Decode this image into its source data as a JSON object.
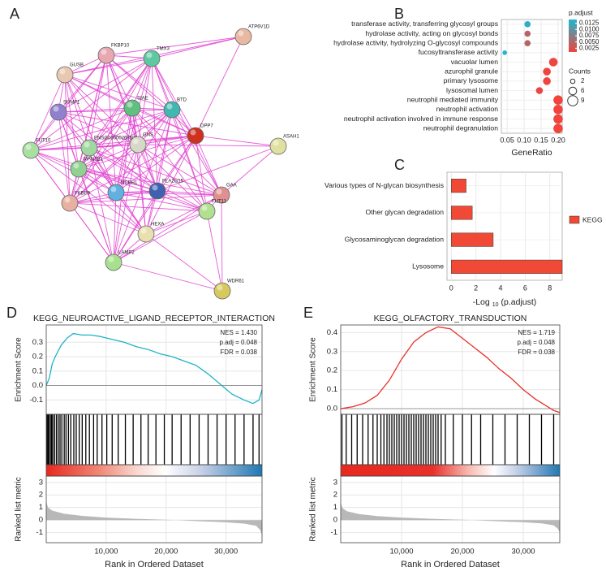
{
  "network": {
    "panel": "A",
    "nodes": [
      {
        "label": "ATP6V1D"
      },
      {
        "label": "FKBP10"
      },
      {
        "label": "TMX3"
      },
      {
        "label": "GUSB"
      },
      {
        "label": "SUMF1"
      },
      {
        "label": "SIAE"
      },
      {
        "label": "BTD"
      },
      {
        "label": "DPP7"
      },
      {
        "label": "ASAH1"
      },
      {
        "label": "FUT10"
      },
      {
        "label": "ENSG00000268590"
      },
      {
        "label": "GNS"
      },
      {
        "label": "MAN2B1"
      },
      {
        "label": "NCEH1"
      },
      {
        "label": "PLA2G15"
      },
      {
        "label": "GAA"
      },
      {
        "label": "FUT11"
      },
      {
        "label": "FKBP9"
      },
      {
        "label": "HEXA"
      },
      {
        "label": "LAMP2"
      },
      {
        "label": "WDR61"
      }
    ]
  },
  "chart_data": [
    {
      "type": "scatter",
      "panel": "B",
      "categories": [
        "transferase activity, transferring glycosyl groups",
        "hydrolase activity, acting on glycosyl bonds",
        "hydrolase activity, hydrolyzing O-glycosyl compounds",
        "fucosyltransferase activity",
        "vacuolar lumen",
        "azurophil granule",
        "primary lysosome",
        "lysosomal lumen",
        "neutrophil mediated immunity",
        "neutrophil activation",
        "neutrophil activation involved in immune response",
        "neutrophil degranulation"
      ],
      "values": [
        0.11,
        0.11,
        0.11,
        0.043,
        0.186,
        0.167,
        0.167,
        0.145,
        0.2,
        0.2,
        0.2,
        0.2
      ],
      "p_adjust": [
        0.013,
        0.0045,
        0.0045,
        0.014,
        0.0012,
        0.001,
        0.001,
        0.0015,
        0.001,
        0.001,
        0.001,
        0.001
      ],
      "counts": [
        4,
        4,
        4,
        2,
        7,
        6,
        6,
        5,
        8,
        8,
        8,
        8
      ],
      "xlim": [
        0.033,
        0.212
      ],
      "xticks": [
        0.05,
        {
          "value": 0.1,
          "label": "0.10"
        },
        0.15,
        {
          "value": 0.2,
          "label": "0.20"
        }
      ],
      "xlabel": "GeneRatio",
      "color_title": "p.adjust",
      "clim": [
        0.001,
        0.014
      ],
      "colors": [
        "#f0443c",
        "#1db7ce"
      ],
      "colorbar_ticks": [
        0.0125,
        {
          "value": 0.01,
          "label": "0.0100"
        },
        0.0075,
        {
          "value": 0.005,
          "label": "0.0050"
        },
        0.0025
      ],
      "size_title": "Counts",
      "size_legend": [
        2,
        6,
        9
      ]
    },
    {
      "type": "bar",
      "panel": "C",
      "orientation": "horizontal",
      "categories": [
        "Various types of N-glycan biosynthesis",
        "Other glycan degradation",
        "Glycosaminoglycan degradation",
        "Lysosome"
      ],
      "series": [
        {
          "name": "KEGG",
          "color": "#f04a36",
          "values": [
            1.2,
            1.7,
            3.4,
            9
          ]
        }
      ],
      "xlim": [
        -0.35,
        9
      ],
      "xticks": [
        0,
        2,
        4,
        6,
        8
      ],
      "xlabel_parts": [
        "-Log",
        "10",
        "(p.adjust)"
      ]
    },
    {
      "type": "gsea",
      "panel": "D",
      "title": "KEGG_NEUROACTIVE_LIGAND_RECEPTOR_INTERACTION",
      "color": "#1eb3c9",
      "x": [
        0,
        500,
        1000,
        1500,
        2500,
        3500,
        4500,
        6000,
        7500,
        9000,
        11000,
        13000,
        15000,
        17000,
        19000,
        21000,
        23000,
        25000,
        27000,
        29000,
        31000,
        33000,
        34500,
        35500,
        36000
      ],
      "values": [
        0,
        0.05,
        0.15,
        0.2,
        0.28,
        0.33,
        0.36,
        0.35,
        0.35,
        0.34,
        0.32,
        0.3,
        0.27,
        0.25,
        0.22,
        0.2,
        0.17,
        0.14,
        0.08,
        0.01,
        -0.06,
        -0.1,
        -0.125,
        -0.1,
        -0.03
      ],
      "hits": [
        120,
        300,
        450,
        700,
        900,
        1100,
        1400,
        1700,
        2000,
        2300,
        2600,
        3000,
        3300,
        3700,
        4100,
        4600,
        5000,
        5500,
        6000,
        6600,
        7200,
        7900,
        8500,
        9300,
        10100,
        11000,
        12000,
        13200,
        14500,
        15800,
        17000,
        18300,
        19700,
        21000,
        22500,
        24000,
        25500,
        27000,
        28500,
        30000,
        31500,
        33000,
        34500,
        35500
      ],
      "metric_x": [
        0,
        300,
        1000,
        3000,
        6000,
        10000,
        15000,
        20000,
        25000,
        30000,
        33000,
        35000,
        35700,
        36000
      ],
      "metric_values": [
        1.5,
        1.0,
        0.75,
        0.5,
        0.33,
        0.2,
        0.1,
        0.02,
        -0.08,
        -0.18,
        -0.28,
        -0.45,
        -0.8,
        -1.2
      ],
      "xlim": [
        0,
        36000
      ],
      "xticks": [
        {
          "value": 10000,
          "label": "10,000"
        },
        {
          "value": 20000,
          "label": "20,000"
        },
        {
          "value": 30000,
          "label": "30,000"
        }
      ],
      "ylim": [
        -0.2,
        0.42
      ],
      "yticks": [
        -0.1,
        {
          "value": 0,
          "label": "0.0"
        },
        0.1,
        0.2,
        0.3
      ],
      "metric_ylim": [
        -1.8,
        3.5
      ],
      "metric_yticks": [
        -1,
        0,
        1,
        2,
        3
      ],
      "ylabel": "Enrichment Score",
      "metric_ylabel": "Ranked list metric",
      "xlabel": "Rank in Ordered Dataset",
      "stats": [
        "NES = 1.430",
        "p.adj = 0.048",
        "FDR = 0.038"
      ]
    },
    {
      "type": "gsea",
      "panel": "E",
      "title": "KEGG_OLFACTORY_TRANSDUCTION",
      "color": "#e8302a",
      "x": [
        0,
        2000,
        4000,
        6000,
        8000,
        10000,
        12000,
        14000,
        16000,
        18000,
        20000,
        22000,
        24000,
        26000,
        28000,
        30000,
        32000,
        34000,
        35000,
        36000
      ],
      "values": [
        0,
        0.01,
        0.03,
        0.07,
        0.15,
        0.26,
        0.35,
        0.4,
        0.43,
        0.42,
        0.37,
        0.32,
        0.27,
        0.21,
        0.16,
        0.1,
        0.05,
        0.01,
        -0.01,
        -0.02
      ],
      "hits": [
        200,
        900,
        1800,
        2700,
        3600,
        4500,
        5300,
        6000,
        6600,
        7100,
        7600,
        8000,
        8400,
        8800,
        9200,
        9600,
        10000,
        10400,
        10800,
        11200,
        11600,
        12000,
        12400,
        12800,
        13200,
        13600,
        14000,
        14400,
        14800,
        15200,
        15600,
        16000,
        16500,
        17200,
        18500,
        20000,
        21500,
        23000,
        25000,
        27000,
        29000,
        31000,
        33000,
        35000
      ],
      "metric_x": [
        0,
        300,
        1000,
        3000,
        6000,
        10000,
        15000,
        20000,
        25000,
        30000,
        33000,
        35000,
        35700,
        36000
      ],
      "metric_values": [
        1.4,
        0.95,
        0.7,
        0.48,
        0.32,
        0.2,
        0.1,
        0.02,
        -0.08,
        -0.17,
        -0.27,
        -0.42,
        -0.7,
        -1.0
      ],
      "xlim": [
        0,
        36000
      ],
      "xticks": [
        {
          "value": 10000,
          "label": "10,000"
        },
        {
          "value": 20000,
          "label": "20,000"
        },
        {
          "value": 30000,
          "label": "30,000"
        }
      ],
      "ylim": [
        -0.03,
        0.44
      ],
      "yticks": [
        {
          "value": 0,
          "label": "0.0"
        },
        0.1,
        0.2,
        0.3,
        0.4
      ],
      "metric_ylim": [
        -1.8,
        3.5
      ],
      "metric_yticks": [
        -1,
        0,
        1,
        2,
        3
      ],
      "ylabel": "Enrichment Score",
      "metric_ylabel": "Ranked list metric",
      "xlabel": "Rank in Ordered Dataset",
      "stats": [
        "NES = 1.719",
        "p.adj = 0.048",
        "FDR = 0.038"
      ]
    }
  ]
}
